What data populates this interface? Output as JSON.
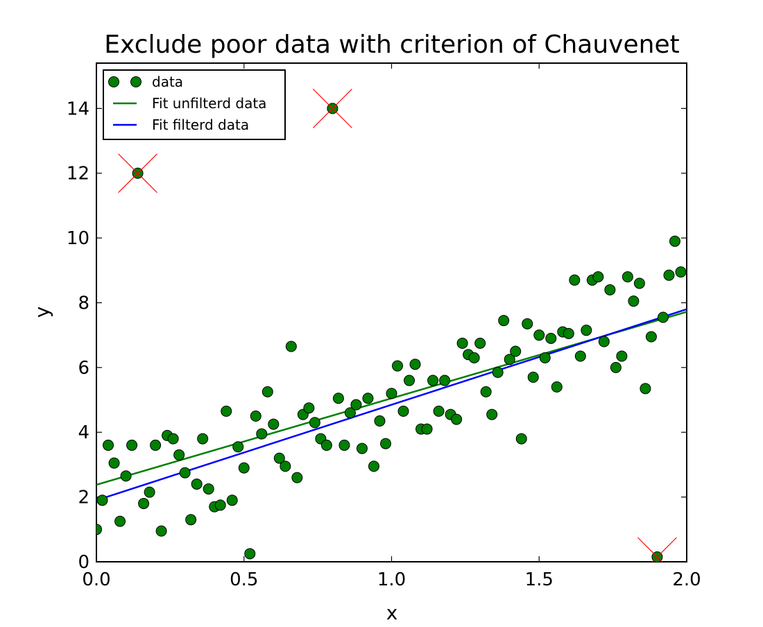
{
  "chart_data": {
    "type": "scatter",
    "title": "Exclude poor data with criterion of Chauvenet",
    "xlabel": "x",
    "ylabel": "y",
    "xlim": [
      0.0,
      2.0
    ],
    "ylim": [
      0,
      15.4
    ],
    "x_ticks": [
      0.0,
      0.5,
      1.0,
      1.5,
      2.0
    ],
    "x_tick_labels": [
      "0.0",
      "0.5",
      "1.0",
      "1.5",
      "2.0"
    ],
    "y_ticks": [
      0,
      2,
      4,
      6,
      8,
      10,
      12,
      14
    ],
    "y_tick_labels": [
      "0",
      "2",
      "4",
      "6",
      "8",
      "10",
      "12",
      "14"
    ],
    "grid": false,
    "legend_position": "top-left",
    "colors": {
      "data": "#008000",
      "unfiltered_fit": "#008000",
      "filtered_fit": "#0000ff",
      "excluded_marker": "#ff0000"
    },
    "series": [
      {
        "name": "data",
        "kind": "scatter",
        "points": [
          [
            0.0,
            1.0
          ],
          [
            0.02,
            1.9
          ],
          [
            0.04,
            3.6
          ],
          [
            0.06,
            3.05
          ],
          [
            0.08,
            1.25
          ],
          [
            0.1,
            2.65
          ],
          [
            0.12,
            3.6
          ],
          [
            0.14,
            12.0
          ],
          [
            0.16,
            1.8
          ],
          [
            0.18,
            2.15
          ],
          [
            0.2,
            3.6
          ],
          [
            0.22,
            0.95
          ],
          [
            0.24,
            3.9
          ],
          [
            0.26,
            3.8
          ],
          [
            0.28,
            3.3
          ],
          [
            0.3,
            2.75
          ],
          [
            0.32,
            1.3
          ],
          [
            0.34,
            2.4
          ],
          [
            0.36,
            3.8
          ],
          [
            0.38,
            2.25
          ],
          [
            0.4,
            1.7
          ],
          [
            0.42,
            1.75
          ],
          [
            0.44,
            4.65
          ],
          [
            0.46,
            1.9
          ],
          [
            0.48,
            3.55
          ],
          [
            0.5,
            2.9
          ],
          [
            0.52,
            0.25
          ],
          [
            0.54,
            4.5
          ],
          [
            0.56,
            3.95
          ],
          [
            0.58,
            5.25
          ],
          [
            0.6,
            4.25
          ],
          [
            0.62,
            3.2
          ],
          [
            0.64,
            2.95
          ],
          [
            0.66,
            6.65
          ],
          [
            0.68,
            2.6
          ],
          [
            0.7,
            4.55
          ],
          [
            0.72,
            4.75
          ],
          [
            0.74,
            4.3
          ],
          [
            0.76,
            3.8
          ],
          [
            0.78,
            3.6
          ],
          [
            0.8,
            14.0
          ],
          [
            0.82,
            5.05
          ],
          [
            0.84,
            3.6
          ],
          [
            0.86,
            4.6
          ],
          [
            0.88,
            4.85
          ],
          [
            0.9,
            3.5
          ],
          [
            0.92,
            5.05
          ],
          [
            0.94,
            2.95
          ],
          [
            0.96,
            4.35
          ],
          [
            0.98,
            3.65
          ],
          [
            1.0,
            5.2
          ],
          [
            1.02,
            6.05
          ],
          [
            1.04,
            4.65
          ],
          [
            1.06,
            5.6
          ],
          [
            1.08,
            6.1
          ],
          [
            1.1,
            4.1
          ],
          [
            1.12,
            4.1
          ],
          [
            1.14,
            5.6
          ],
          [
            1.16,
            4.65
          ],
          [
            1.18,
            5.6
          ],
          [
            1.2,
            4.55
          ],
          [
            1.22,
            4.4
          ],
          [
            1.24,
            6.75
          ],
          [
            1.26,
            6.4
          ],
          [
            1.28,
            6.3
          ],
          [
            1.3,
            6.75
          ],
          [
            1.32,
            5.25
          ],
          [
            1.34,
            4.55
          ],
          [
            1.36,
            5.85
          ],
          [
            1.38,
            7.45
          ],
          [
            1.4,
            6.25
          ],
          [
            1.42,
            6.5
          ],
          [
            1.44,
            3.8
          ],
          [
            1.46,
            7.35
          ],
          [
            1.48,
            5.7
          ],
          [
            1.5,
            7.0
          ],
          [
            1.52,
            6.3
          ],
          [
            1.54,
            6.9
          ],
          [
            1.56,
            5.4
          ],
          [
            1.58,
            7.1
          ],
          [
            1.6,
            7.05
          ],
          [
            1.62,
            8.7
          ],
          [
            1.64,
            6.35
          ],
          [
            1.66,
            7.15
          ],
          [
            1.68,
            8.7
          ],
          [
            1.7,
            8.8
          ],
          [
            1.72,
            6.8
          ],
          [
            1.74,
            8.4
          ],
          [
            1.76,
            6.0
          ],
          [
            1.78,
            6.35
          ],
          [
            1.8,
            8.8
          ],
          [
            1.82,
            8.05
          ],
          [
            1.84,
            8.6
          ],
          [
            1.86,
            5.35
          ],
          [
            1.88,
            6.95
          ],
          [
            1.9,
            0.15
          ],
          [
            1.92,
            7.55
          ],
          [
            1.94,
            8.85
          ],
          [
            1.96,
            9.9
          ],
          [
            1.98,
            8.95
          ]
        ]
      },
      {
        "name": "Fit unfilterd data",
        "kind": "line",
        "points": [
          [
            0.0,
            2.38
          ],
          [
            2.0,
            7.72
          ]
        ]
      },
      {
        "name": "Fit filterd data",
        "kind": "line",
        "points": [
          [
            0.0,
            1.9
          ],
          [
            2.0,
            7.8
          ]
        ]
      }
    ],
    "excluded_points": [
      [
        0.14,
        12.0
      ],
      [
        0.8,
        14.0
      ],
      [
        1.9,
        0.15
      ]
    ]
  }
}
